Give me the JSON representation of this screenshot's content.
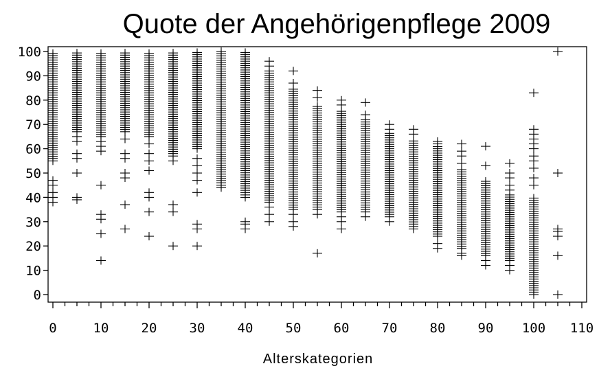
{
  "chart_data": {
    "type": "scatter",
    "title": "Quote der Angehörigenpflege 2009",
    "xlabel": "Alterskategorien",
    "ylabel": "",
    "xlim": [
      0,
      110
    ],
    "ylim": [
      0,
      100
    ],
    "x_ticks": [
      0,
      10,
      20,
      30,
      40,
      50,
      60,
      70,
      80,
      90,
      100,
      110
    ],
    "y_ticks": [
      0,
      10,
      20,
      30,
      40,
      50,
      60,
      70,
      80,
      90,
      100
    ],
    "x_tick_labels": [
      "0",
      "10",
      "20",
      "30",
      "40",
      "50",
      "60",
      "70",
      "80",
      "90",
      "100",
      "110"
    ],
    "y_tick_labels": [
      "0",
      "10",
      "20",
      "30",
      "40",
      "50",
      "60",
      "70",
      "80",
      "90",
      "100"
    ],
    "marker": "plus",
    "color": "#000000",
    "grid": false,
    "categories": [
      {
        "x": 0,
        "dense_range": [
          56,
          100
        ],
        "outliers": [
          38,
          40,
          42,
          45,
          47,
          55
        ]
      },
      {
        "x": 5,
        "dense_range": [
          67,
          100
        ],
        "outliers": [
          39,
          40,
          50,
          56,
          58,
          63,
          65
        ]
      },
      {
        "x": 10,
        "dense_range": [
          65,
          100
        ],
        "outliers": [
          14,
          25,
          31,
          33,
          45,
          59,
          61,
          63
        ]
      },
      {
        "x": 15,
        "dense_range": [
          67,
          100
        ],
        "outliers": [
          27,
          37,
          48,
          50,
          56,
          58,
          64
        ]
      },
      {
        "x": 20,
        "dense_range": [
          65,
          100
        ],
        "outliers": [
          24,
          34,
          40,
          42,
          51,
          55,
          58,
          62
        ]
      },
      {
        "x": 25,
        "dense_range": [
          58,
          100
        ],
        "outliers": [
          20,
          34,
          37,
          55,
          57
        ]
      },
      {
        "x": 30,
        "dense_range": [
          60,
          100
        ],
        "outliers": [
          20,
          27,
          29,
          42,
          47,
          50,
          53,
          56
        ]
      },
      {
        "x": 35,
        "dense_range": [
          46,
          100
        ],
        "outliers": [
          44,
          45
        ]
      },
      {
        "x": 40,
        "dense_range": [
          42,
          100
        ],
        "outliers": [
          27,
          29,
          30,
          40,
          41
        ]
      },
      {
        "x": 45,
        "dense_range": [
          38,
          92
        ],
        "outliers": [
          30,
          33,
          36,
          94,
          96
        ]
      },
      {
        "x": 50,
        "dense_range": [
          35,
          85
        ],
        "outliers": [
          28,
          30,
          33,
          87,
          92
        ]
      },
      {
        "x": 55,
        "dense_range": [
          36,
          78
        ],
        "outliers": [
          17,
          33,
          35,
          81,
          84
        ]
      },
      {
        "x": 60,
        "dense_range": [
          34,
          76
        ],
        "outliers": [
          27,
          30,
          32,
          78,
          80
        ]
      },
      {
        "x": 65,
        "dense_range": [
          35,
          72
        ],
        "outliers": [
          32,
          34,
          74,
          79
        ]
      },
      {
        "x": 70,
        "dense_range": [
          33,
          67
        ],
        "outliers": [
          30,
          32,
          68,
          70
        ]
      },
      {
        "x": 75,
        "dense_range": [
          29,
          64
        ],
        "outliers": [
          27,
          28,
          66,
          68
        ]
      },
      {
        "x": 80,
        "dense_range": [
          24,
          61
        ],
        "outliers": [
          19,
          21,
          62,
          63
        ]
      },
      {
        "x": 85,
        "dense_range": [
          19,
          52
        ],
        "outliers": [
          16,
          17,
          54,
          57,
          59,
          62
        ]
      },
      {
        "x": 90,
        "dense_range": [
          16,
          47
        ],
        "outliers": [
          12,
          14,
          53,
          61
        ]
      },
      {
        "x": 95,
        "dense_range": [
          14,
          41
        ],
        "outliers": [
          10,
          12,
          43,
          45,
          48,
          50,
          54
        ]
      },
      {
        "x": 100,
        "dense_range": [
          1,
          40
        ],
        "outliers": [
          0,
          45,
          48,
          52,
          55,
          57,
          60,
          62,
          64,
          66,
          68,
          83
        ]
      },
      {
        "x": 105,
        "dense_range": null,
        "outliers": [
          0,
          16,
          24,
          26,
          27,
          50,
          100
        ]
      }
    ]
  }
}
